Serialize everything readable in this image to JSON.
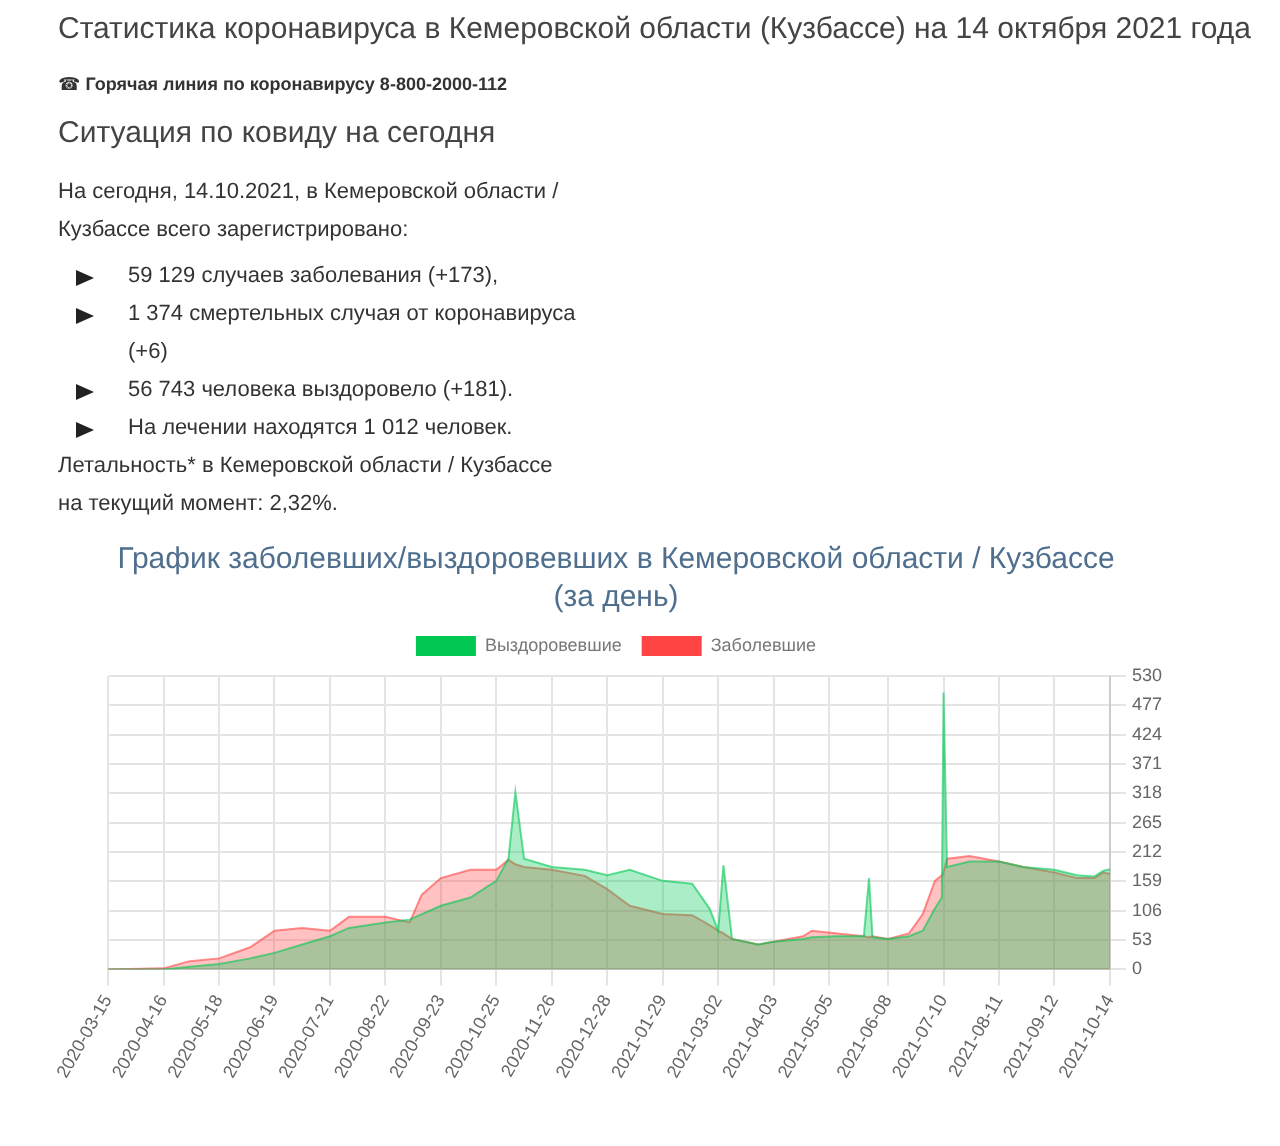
{
  "chart_data": {
    "type": "area",
    "title": "График заболевших/выздоровевших в Кемеровской области / Кузбассе (за день)",
    "annotations": [
      "Статистика коронавируса в Кемеровской области (Кузбассе) на 14 октября 2021 года",
      "☎ Горячая линия по коронавирусу 8-800-2000-112",
      "Ситуация по ковиду на сегодня",
      "На сегодня, 14.10.2021, в Кемеровской области / Кузбассе всего зарегистрировано:",
      "59 129 случаев заболевания (+173),",
      "1 374 смертельных случая от коронавируса (+6)",
      "56 743 человека выздоровело (+181).",
      "На лечении находятся 1 012 человек.",
      "Летальность* в Кемеровской области / Кузбассе на текущий момент: 2,32%."
    ],
    "x": [
      "2020-03-15",
      "2020-04-16",
      "2020-05-01",
      "2020-05-18",
      "2020-06-05",
      "2020-06-19",
      "2020-07-05",
      "2020-07-21",
      "2020-08-01",
      "2020-08-22",
      "2020-09-05",
      "2020-09-12",
      "2020-09-23",
      "2020-10-10",
      "2020-10-25",
      "2020-11-01",
      "2020-11-05",
      "2020-11-10",
      "2020-11-26",
      "2020-12-15",
      "2020-12-28",
      "2021-01-10",
      "2021-01-29",
      "2021-02-15",
      "2021-02-25",
      "2021-03-02",
      "2021-03-05",
      "2021-03-10",
      "2021-03-25",
      "2021-04-03",
      "2021-04-20",
      "2021-04-25",
      "2021-05-10",
      "2021-05-25",
      "2021-05-28",
      "2021-05-30",
      "2021-06-08",
      "2021-06-20",
      "2021-06-28",
      "2021-07-05",
      "2021-07-09",
      "2021-07-10",
      "2021-07-12",
      "2021-07-25",
      "2021-08-11",
      "2021-08-25",
      "2021-09-12",
      "2021-09-25",
      "2021-10-05",
      "2021-10-10",
      "2021-10-14"
    ],
    "series": [
      {
        "name": "Выздоровевшие",
        "color": "#00c853",
        "values": [
          0,
          0,
          5,
          10,
          20,
          30,
          45,
          60,
          75,
          85,
          90,
          100,
          115,
          130,
          160,
          200,
          320,
          200,
          185,
          180,
          170,
          180,
          160,
          155,
          110,
          70,
          188,
          55,
          45,
          50,
          55,
          58,
          60,
          60,
          165,
          58,
          55,
          60,
          70,
          110,
          130,
          500,
          185,
          195,
          195,
          185,
          180,
          170,
          168,
          178,
          181
        ]
      },
      {
        "name": "Заболевшие",
        "color": "#ff4444",
        "values": [
          0,
          2,
          15,
          20,
          40,
          70,
          75,
          70,
          95,
          95,
          85,
          135,
          165,
          180,
          180,
          198,
          190,
          185,
          180,
          169,
          145,
          115,
          100,
          98,
          80,
          70,
          65,
          55,
          45,
          50,
          60,
          70,
          65,
          60,
          58,
          60,
          55,
          65,
          100,
          160,
          170,
          175,
          200,
          205,
          195,
          185,
          175,
          165,
          165,
          175,
          173
        ]
      }
    ],
    "xlim": [
      "2020-03-15",
      "2021-10-14"
    ],
    "xticks": [
      "2020-03-15",
      "2020-04-16",
      "2020-05-18",
      "2020-06-19",
      "2020-07-21",
      "2020-08-22",
      "2020-09-23",
      "2020-10-25",
      "2020-11-26",
      "2020-12-28",
      "2021-01-29",
      "2021-03-02",
      "2021-04-03",
      "2021-05-05",
      "2021-06-08",
      "2021-07-10",
      "2021-08-11",
      "2021-09-12",
      "2021-10-14"
    ],
    "ylim": [
      0,
      530
    ],
    "yticks": [
      0,
      53,
      106,
      159,
      212,
      265,
      318,
      371,
      424,
      477,
      530
    ],
    "grid": true,
    "legend": "top"
  }
}
